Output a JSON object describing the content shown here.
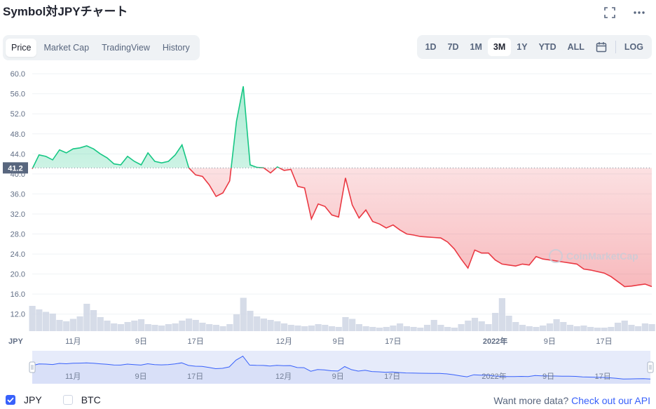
{
  "title": "Symbol対JPYチャート",
  "icons": {
    "fullscreen": "fullscreen-icon",
    "more": "more-icon"
  },
  "tabs": [
    {
      "label": "Price",
      "active": true
    },
    {
      "label": "Market Cap",
      "active": false
    },
    {
      "label": "TradingView",
      "active": false
    },
    {
      "label": "History",
      "active": false
    }
  ],
  "ranges": [
    {
      "label": "1D",
      "active": false
    },
    {
      "label": "7D",
      "active": false
    },
    {
      "label": "1M",
      "active": false
    },
    {
      "label": "3M",
      "active": true
    },
    {
      "label": "1Y",
      "active": false
    },
    {
      "label": "YTD",
      "active": false
    },
    {
      "label": "ALL",
      "active": false
    }
  ],
  "log_label": "LOG",
  "legend": {
    "jpy": "JPY",
    "btc": "BTC"
  },
  "footer": {
    "text": "Want more data?",
    "link": "Check out our API"
  },
  "watermark": "CoinMarketCap",
  "colors": {
    "up": "#16c784",
    "down": "#ea3943",
    "accent": "#3861fb",
    "volume": "#cfd6e4"
  },
  "chart_data": {
    "type": "area",
    "currency_label": "JPY",
    "current_price_label": "41.2",
    "reference_price": 41.2,
    "y_ticks": [
      "60.0",
      "56.0",
      "52.0",
      "48.0",
      "44.0",
      "40.0",
      "36.0",
      "32.0",
      "28.0",
      "24.0",
      "20.0",
      "16.0",
      "12.0"
    ],
    "ylim": [
      8.6,
      61
    ],
    "x_ticks": [
      {
        "label": "11月",
        "day": 6,
        "bold": false
      },
      {
        "label": "9日",
        "day": 16,
        "bold": false
      },
      {
        "label": "17日",
        "day": 24,
        "bold": false
      },
      {
        "label": "12月",
        "day": 37,
        "bold": false
      },
      {
        "label": "9日",
        "day": 45,
        "bold": false
      },
      {
        "label": "17日",
        "day": 53,
        "bold": false
      },
      {
        "label": "2022年",
        "day": 68,
        "bold": true
      },
      {
        "label": "9日",
        "day": 76,
        "bold": false
      },
      {
        "label": "17日",
        "day": 84,
        "bold": false
      }
    ],
    "navigator_ticks": [
      {
        "label": "11月",
        "day": 6
      },
      {
        "label": "9日",
        "day": 16
      },
      {
        "label": "17日",
        "day": 24
      },
      {
        "label": "12月",
        "day": 37
      },
      {
        "label": "9日",
        "day": 45
      },
      {
        "label": "17日",
        "day": 53
      },
      {
        "label": "2022年",
        "day": 68
      },
      {
        "label": "9日",
        "day": 76
      },
      {
        "label": "17日",
        "day": 84
      }
    ],
    "x_domain": [
      0,
      91
    ],
    "price": {
      "x": [
        0,
        1,
        2,
        3,
        4,
        5,
        6,
        7,
        8,
        9,
        10,
        11,
        12,
        13,
        14,
        15,
        16,
        17,
        18,
        19,
        20,
        21,
        22,
        23,
        24,
        25,
        26,
        27,
        28,
        29,
        30,
        31,
        32,
        33,
        34,
        35,
        36,
        37,
        38,
        39,
        40,
        41,
        42,
        43,
        44,
        45,
        46,
        47,
        48,
        49,
        50,
        51,
        52,
        53,
        54,
        55,
        56,
        57,
        58,
        59,
        60,
        61,
        62,
        63,
        64,
        65,
        66,
        67,
        68,
        69,
        70,
        71,
        72,
        73,
        74,
        75,
        76,
        77,
        78,
        79,
        80,
        81,
        82,
        83,
        84,
        85,
        86,
        87,
        88,
        89,
        90,
        91
      ],
      "y": [
        41.0,
        43.8,
        43.5,
        42.8,
        44.8,
        44.2,
        45.0,
        45.2,
        45.6,
        45.0,
        44.0,
        43.2,
        42.0,
        41.8,
        43.5,
        42.5,
        41.8,
        44.2,
        42.5,
        42.2,
        42.5,
        43.8,
        45.8,
        41.2,
        39.8,
        39.5,
        37.8,
        35.5,
        36.2,
        38.6,
        50.5,
        57.5,
        41.8,
        41.3,
        41.2,
        40.2,
        41.4,
        40.7,
        40.9,
        37.5,
        37.2,
        31.0,
        34.0,
        33.5,
        31.8,
        31.4,
        39.2,
        33.8,
        31.2,
        32.8,
        30.5,
        30.0,
        29.2,
        29.8,
        28.8,
        28.0,
        27.8,
        27.5,
        27.4,
        27.3,
        27.2,
        26.4,
        25.0,
        23.0,
        21.2,
        24.8,
        24.2,
        24.2,
        22.8,
        22.0,
        21.8,
        21.6,
        22.0,
        21.8,
        23.5,
        23.0,
        22.8,
        22.6,
        22.4,
        22.2,
        22.0,
        21.0,
        20.8,
        20.5,
        20.2,
        19.5,
        18.5,
        17.5,
        17.6,
        17.8,
        18.0,
        17.5
      ]
    },
    "volume": [
      0.72,
      0.62,
      0.55,
      0.5,
      0.32,
      0.28,
      0.35,
      0.42,
      0.78,
      0.6,
      0.4,
      0.3,
      0.22,
      0.2,
      0.26,
      0.3,
      0.34,
      0.2,
      0.18,
      0.16,
      0.2,
      0.22,
      0.3,
      0.36,
      0.32,
      0.24,
      0.2,
      0.18,
      0.14,
      0.2,
      0.48,
      0.95,
      0.58,
      0.42,
      0.36,
      0.32,
      0.28,
      0.22,
      0.18,
      0.16,
      0.14,
      0.16,
      0.2,
      0.18,
      0.14,
      0.12,
      0.4,
      0.35,
      0.2,
      0.14,
      0.12,
      0.1,
      0.12,
      0.16,
      0.22,
      0.14,
      0.12,
      0.1,
      0.18,
      0.32,
      0.18,
      0.12,
      0.1,
      0.2,
      0.3,
      0.38,
      0.28,
      0.2,
      0.52,
      0.94,
      0.44,
      0.26,
      0.18,
      0.14,
      0.12,
      0.16,
      0.22,
      0.34,
      0.26,
      0.18,
      0.14,
      0.16,
      0.12,
      0.1,
      0.1,
      0.12,
      0.24,
      0.3,
      0.18,
      0.14,
      0.22,
      0.2
    ]
  }
}
